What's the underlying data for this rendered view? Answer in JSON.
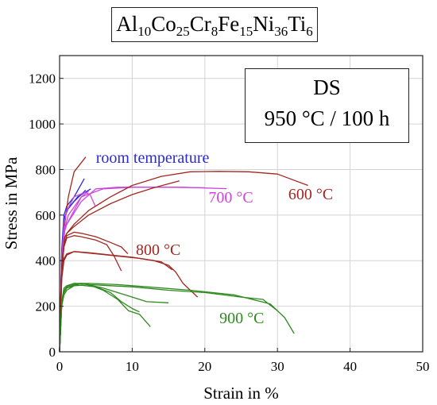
{
  "chart_data": {
    "type": "line",
    "title_parts": [
      {
        "t": "Al",
        "sub": "10"
      },
      {
        "t": "Co",
        "sub": "25"
      },
      {
        "t": "Cr",
        "sub": "8"
      },
      {
        "t": "Fe",
        "sub": "15"
      },
      {
        "t": "Ni",
        "sub": "36"
      },
      {
        "t": "Ti",
        "sub": "6"
      }
    ],
    "condition_line1": "DS",
    "condition_line2": "950 °C / 100 h",
    "xlabel": "Strain in %",
    "ylabel": "Stress in MPa",
    "xlim": [
      0,
      50
    ],
    "ylim": [
      0,
      1300
    ],
    "x_ticks": [
      0,
      10,
      20,
      30,
      40,
      50
    ],
    "y_ticks": [
      0,
      200,
      400,
      600,
      800,
      1000,
      1200
    ],
    "grid": true,
    "series": [
      {
        "name": "room temperature",
        "color": "#2a2ad6",
        "curves": [
          [
            [
              0,
              0
            ],
            [
              0.3,
              450
            ],
            [
              0.6,
              600
            ],
            [
              1.0,
              640
            ],
            [
              2.0,
              680
            ],
            [
              3.4,
              760
            ]
          ],
          [
            [
              0,
              0
            ],
            [
              0.3,
              430
            ],
            [
              0.6,
              575
            ],
            [
              1.0,
              620
            ],
            [
              2.0,
              660
            ],
            [
              3.6,
              710
            ]
          ],
          [
            [
              0,
              0
            ],
            [
              0.3,
              440
            ],
            [
              0.7,
              590
            ],
            [
              1.2,
              630
            ],
            [
              2.5,
              680
            ],
            [
              4.3,
              715
            ]
          ]
        ]
      },
      {
        "name": "",
        "color": "#a12820",
        "curves": [
          [
            [
              0,
              0
            ],
            [
              0.3,
              420
            ],
            [
              0.7,
              560
            ],
            [
              1.2,
              680
            ],
            [
              2.0,
              790
            ],
            [
              3.6,
              855
            ]
          ]
        ]
      },
      {
        "name": "700 °C",
        "color": "#cc44dd",
        "curves": [
          [
            [
              0,
              0
            ],
            [
              0.3,
              400
            ],
            [
              0.6,
              560
            ],
            [
              1.0,
              620
            ],
            [
              2.0,
              680
            ],
            [
              3.5,
              700
            ],
            [
              4.2,
              690
            ],
            [
              4.9,
              640
            ]
          ],
          [
            [
              0,
              0
            ],
            [
              0.3,
              380
            ],
            [
              0.7,
              530
            ],
            [
              1.0,
              560
            ],
            [
              2.0,
              620
            ],
            [
              3.0,
              680
            ],
            [
              4.0,
              705
            ]
          ],
          [
            [
              0,
              0
            ],
            [
              0.3,
              380
            ],
            [
              0.7,
              550
            ],
            [
              1.0,
              560
            ],
            [
              2,
              610
            ],
            [
              3.0,
              660
            ],
            [
              5,
              715
            ],
            [
              8,
              722
            ],
            [
              12,
              722
            ],
            [
              17,
              722
            ],
            [
              23,
              716
            ]
          ],
          [
            [
              0,
              0
            ],
            [
              0.3,
              380
            ],
            [
              0.7,
              540
            ],
            [
              1.2,
              600
            ],
            [
              3,
              680
            ],
            [
              6,
              715
            ],
            [
              10,
              722
            ],
            [
              15,
              722
            ],
            [
              20,
              720
            ]
          ]
        ]
      },
      {
        "name": "600 °C",
        "color": "#a12820",
        "curves": [
          [
            [
              0,
              0
            ],
            [
              0.3,
              380
            ],
            [
              0.7,
              500
            ],
            [
              1.0,
              520
            ],
            [
              2,
              560
            ],
            [
              4,
              620
            ],
            [
              7,
              680
            ],
            [
              10,
              730
            ],
            [
              14,
              770
            ],
            [
              18,
              790
            ],
            [
              22,
              792
            ],
            [
              26,
              790
            ],
            [
              30,
              780
            ],
            [
              34.2,
              730
            ]
          ],
          [
            [
              0,
              0
            ],
            [
              0.3,
              380
            ],
            [
              0.7,
              500
            ],
            [
              1.0,
              520
            ],
            [
              2,
              550
            ],
            [
              4,
              600
            ],
            [
              7,
              650
            ],
            [
              10,
              690
            ],
            [
              13,
              720
            ],
            [
              16.5,
              750
            ]
          ]
        ]
      },
      {
        "name": "800 °C",
        "color": "#a12820",
        "curves": [
          [
            [
              0,
              0
            ],
            [
              0.3,
              350
            ],
            [
              0.6,
              470
            ],
            [
              1,
              510
            ],
            [
              2,
              525
            ],
            [
              3,
              520
            ],
            [
              5,
              505
            ],
            [
              7,
              480
            ],
            [
              8.5,
              460
            ],
            [
              9.4,
              430
            ]
          ],
          [
            [
              0,
              0
            ],
            [
              0.3,
              350
            ],
            [
              0.6,
              460
            ],
            [
              1,
              500
            ],
            [
              2,
              510
            ],
            [
              3,
              505
            ],
            [
              5,
              490
            ],
            [
              6.5,
              470
            ],
            [
              7.5,
              420
            ],
            [
              8.5,
              355
            ]
          ],
          [
            [
              0,
              0
            ],
            [
              0.3,
              330
            ],
            [
              0.6,
              410
            ],
            [
              1,
              430
            ],
            [
              2,
              440
            ],
            [
              4,
              435
            ],
            [
              7,
              425
            ],
            [
              10,
              415
            ],
            [
              13,
              400
            ],
            [
              15,
              380
            ],
            [
              16,
              350
            ],
            [
              17,
              300
            ],
            [
              19,
              240
            ]
          ],
          [
            [
              0,
              0
            ],
            [
              0.3,
              320
            ],
            [
              0.6,
              400
            ],
            [
              1,
              425
            ],
            [
              2,
              440
            ],
            [
              5,
              430
            ],
            [
              8,
              420
            ],
            [
              11,
              410
            ],
            [
              14,
              395
            ],
            [
              15.5,
              360
            ]
          ]
        ]
      },
      {
        "name": "900 °C",
        "color": "#2e8a1e",
        "curves": [
          [
            [
              0,
              0
            ],
            [
              0.3,
              220
            ],
            [
              0.6,
              280
            ],
            [
              1,
              290
            ],
            [
              2,
              300
            ],
            [
              4,
              295
            ],
            [
              7,
              290
            ],
            [
              10,
              285
            ],
            [
              15,
              270
            ],
            [
              20,
              260
            ],
            [
              25,
              240
            ],
            [
              28,
              230
            ],
            [
              30,
              180
            ]
          ],
          [
            [
              0,
              0
            ],
            [
              0.3,
              220
            ],
            [
              0.6,
              270
            ],
            [
              1,
              285
            ],
            [
              2,
              300
            ],
            [
              4,
              300
            ],
            [
              8,
              295
            ],
            [
              12,
              285
            ],
            [
              18,
              270
            ],
            [
              24,
              250
            ],
            [
              29,
              210
            ],
            [
              31,
              150
            ],
            [
              32.3,
              80
            ]
          ],
          [
            [
              0,
              0
            ],
            [
              0.3,
              210
            ],
            [
              0.6,
              260
            ],
            [
              1,
              280
            ],
            [
              2,
              295
            ],
            [
              3,
              300
            ],
            [
              6,
              280
            ],
            [
              9,
              250
            ],
            [
              12,
              220
            ],
            [
              15,
              215
            ]
          ],
          [
            [
              0,
              0
            ],
            [
              0.3,
              200
            ],
            [
              0.6,
              250
            ],
            [
              1,
              270
            ],
            [
              2,
              290
            ],
            [
              3,
              300
            ],
            [
              4,
              295
            ],
            [
              6,
              270
            ],
            [
              8,
              230
            ],
            [
              9.5,
              180
            ],
            [
              11,
              165
            ],
            [
              12.5,
              110
            ]
          ],
          [
            [
              0,
              0
            ],
            [
              0.3,
              210
            ],
            [
              0.6,
              260
            ],
            [
              1,
              280
            ],
            [
              2,
              290
            ],
            [
              3,
              292
            ],
            [
              5,
              285
            ],
            [
              7,
              260
            ],
            [
              8.5,
              220
            ],
            [
              10,
              190
            ],
            [
              11,
              175
            ]
          ]
        ]
      }
    ],
    "annotations": [
      {
        "text": "room temperature",
        "color": "#2a2ad6",
        "x": 5.0,
        "y": 830
      },
      {
        "text": "700 °C",
        "color": "#cc44dd",
        "x": 20.5,
        "y": 655
      },
      {
        "text": "600 °C",
        "color": "#a12820",
        "x": 31.5,
        "y": 670
      },
      {
        "text": "800 °C",
        "color": "#a12820",
        "x": 10.5,
        "y": 425
      },
      {
        "text": "900 °C",
        "color": "#2e8a1e",
        "x": 22.0,
        "y": 125
      }
    ]
  }
}
